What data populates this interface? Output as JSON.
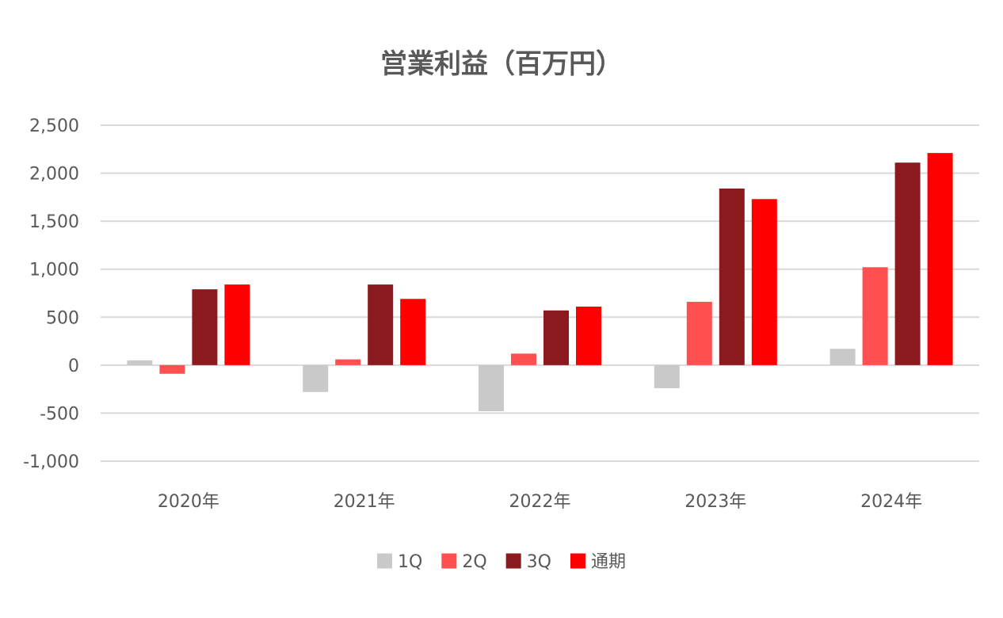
{
  "chart_data": {
    "type": "bar",
    "title": "営業利益（百万円）",
    "xlabel": "",
    "ylabel": "",
    "categories": [
      "2020年",
      "2021年",
      "2022年",
      "2023年",
      "2024年"
    ],
    "series": [
      {
        "name": "1Q",
        "color": "#c9c9c9",
        "values": [
          50,
          -280,
          -480,
          -240,
          170
        ]
      },
      {
        "name": "2Q",
        "color": "#ff5050",
        "values": [
          -90,
          60,
          120,
          660,
          1020
        ]
      },
      {
        "name": "3Q",
        "color": "#8b1a1f",
        "values": [
          790,
          840,
          570,
          1840,
          2110
        ]
      },
      {
        "name": "通期",
        "color": "#ff0000",
        "values": [
          840,
          690,
          610,
          1730,
          2210
        ]
      }
    ],
    "ylim": [
      -1000,
      2500
    ],
    "yticks": [
      2500,
      2000,
      1500,
      1000,
      500,
      0,
      -500,
      -1000
    ],
    "ytick_labels": [
      "2,500",
      "2,000",
      "1,500",
      "1,000",
      "500",
      "0",
      "-500",
      "-1,000"
    ],
    "negative_tick_color": "#ff0000",
    "grid": true,
    "legend_position": "bottom"
  }
}
